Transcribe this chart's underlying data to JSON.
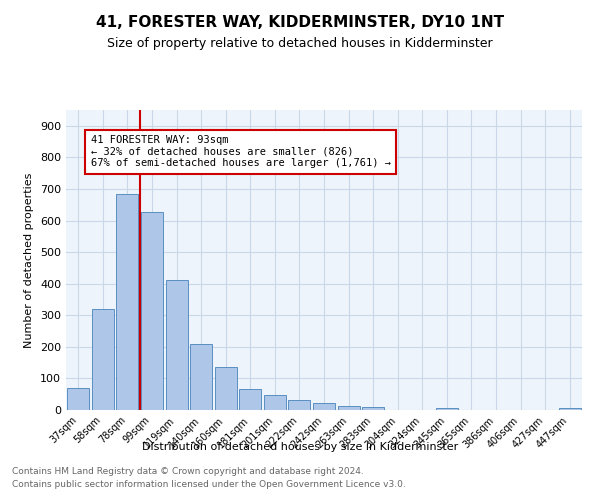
{
  "title": "41, FORESTER WAY, KIDDERMINSTER, DY10 1NT",
  "subtitle": "Size of property relative to detached houses in Kidderminster",
  "xlabel": "Distribution of detached houses by size in Kidderminster",
  "ylabel": "Number of detached properties",
  "categories": [
    "37sqm",
    "58sqm",
    "78sqm",
    "99sqm",
    "119sqm",
    "140sqm",
    "160sqm",
    "181sqm",
    "201sqm",
    "222sqm",
    "242sqm",
    "263sqm",
    "283sqm",
    "304sqm",
    "324sqm",
    "345sqm",
    "365sqm",
    "386sqm",
    "406sqm",
    "427sqm",
    "447sqm"
  ],
  "values": [
    70,
    320,
    685,
    628,
    412,
    208,
    135,
    68,
    48,
    32,
    22,
    12,
    8,
    0,
    0,
    7,
    0,
    0,
    0,
    0,
    7
  ],
  "bar_color": "#aec6e8",
  "bar_edge_color": "#5a8fc2",
  "property_label": "41 FORESTER WAY: 93sqm",
  "annotation_line1": "← 32% of detached houses are smaller (826)",
  "annotation_line2": "67% of semi-detached houses are larger (1,761) →",
  "vline_color": "#cc0000",
  "annotation_box_color": "#cc0000",
  "grid_color": "#c8d8e8",
  "background_color": "#eef4fb",
  "footer_line1": "Contains HM Land Registry data © Crown copyright and database right 2024.",
  "footer_line2": "Contains public sector information licensed under the Open Government Licence v3.0.",
  "ylim": [
    0,
    950
  ],
  "yticks": [
    0,
    100,
    200,
    300,
    400,
    500,
    600,
    700,
    800,
    900
  ]
}
